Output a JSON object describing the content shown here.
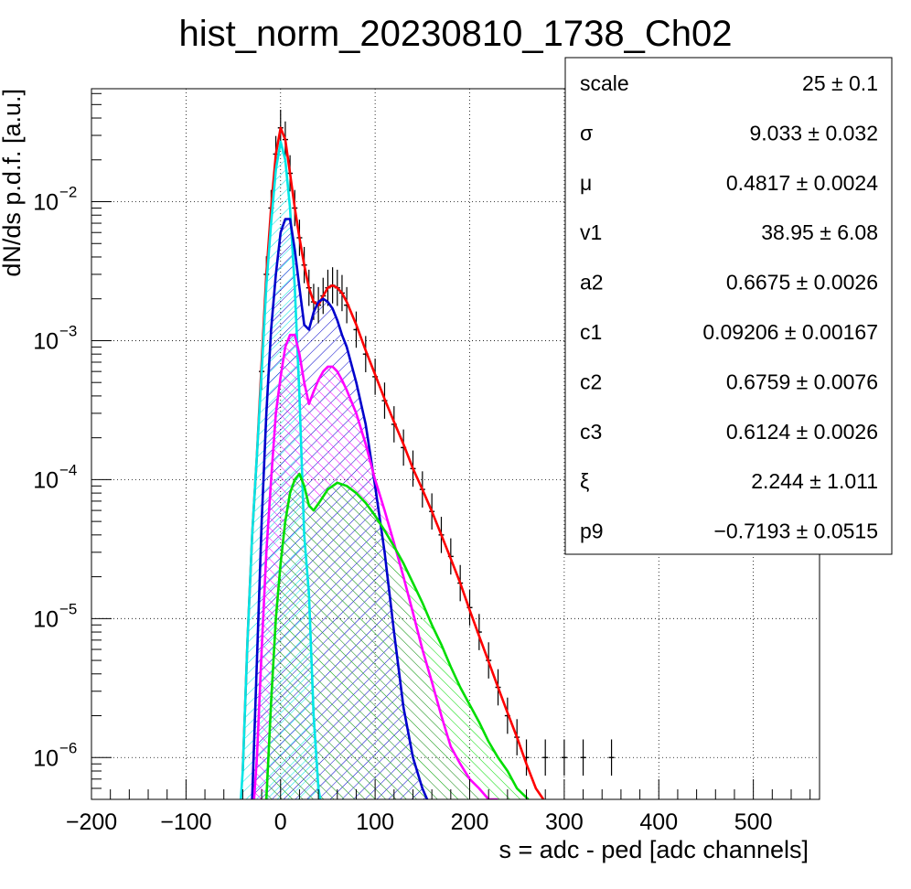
{
  "chart_data": {
    "type": "line",
    "title": "hist_norm_20230810_1738_Ch02",
    "xlabel": "s = adc - ped [adc channels]",
    "ylabel": "dN/ds p.d.f. [a.u.]",
    "xlim": [
      -200,
      570
    ],
    "ylim": [
      5e-07,
      0.065
    ],
    "y_scale": "log",
    "grid": true,
    "x_ticks": [
      {
        "value": -200,
        "label": "−200"
      },
      {
        "value": -100,
        "label": "−100"
      },
      {
        "value": 0,
        "label": "0"
      },
      {
        "value": 100,
        "label": "100"
      },
      {
        "value": 200,
        "label": "200"
      },
      {
        "value": 300,
        "label": "300"
      },
      {
        "value": 400,
        "label": "400"
      },
      {
        "value": 500,
        "label": "500"
      }
    ],
    "y_ticks": [
      {
        "value": 0.01,
        "base": "10",
        "exp": "−2"
      },
      {
        "value": 0.001,
        "base": "10",
        "exp": "−3"
      },
      {
        "value": 0.0001,
        "base": "10",
        "exp": "−4"
      },
      {
        "value": 1e-05,
        "base": "10",
        "exp": "−5"
      },
      {
        "value": 1e-06,
        "base": "10",
        "exp": "−6"
      }
    ],
    "data_histogram": {
      "color": "#000000",
      "x": [
        -20,
        -15,
        -10,
        -5,
        0,
        5,
        10,
        15,
        20,
        25,
        30,
        35,
        40,
        45,
        50,
        55,
        60,
        65,
        70,
        80,
        90,
        100,
        110,
        120,
        130,
        140,
        150,
        160,
        170,
        180,
        190,
        200,
        210,
        220,
        230,
        240,
        250,
        260,
        280,
        300,
        320,
        350
      ],
      "y": [
        0.0006,
        0.003,
        0.009,
        0.022,
        0.034,
        0.028,
        0.016,
        0.009,
        0.0055,
        0.0035,
        0.0024,
        0.0019,
        0.0018,
        0.0021,
        0.0024,
        0.0025,
        0.0024,
        0.0022,
        0.0018,
        0.0012,
        0.0008,
        0.00055,
        0.00037,
        0.00025,
        0.00017,
        0.00012,
        8.5e-05,
        5.9e-05,
        4e-05,
        2.8e-05,
        1.8e-05,
        1.2e-05,
        8e-06,
        5e-06,
        3.2e-06,
        2e-06,
        1.4e-06,
        1e-06,
        1e-06,
        1e-06,
        1e-06,
        1e-06
      ]
    },
    "series": [
      {
        "color": "#ff0000",
        "fill": false,
        "x": [
          -40,
          -35,
          -30,
          -25,
          -20,
          -15,
          -10,
          -5,
          0,
          5,
          10,
          15,
          20,
          25,
          30,
          35,
          40,
          45,
          50,
          55,
          60,
          65,
          70,
          80,
          90,
          100,
          110,
          120,
          130,
          140,
          150,
          160,
          170,
          180,
          190,
          200,
          210,
          220,
          230,
          240,
          250,
          260,
          270,
          278
        ],
        "y": [
          8e-07,
          7e-06,
          4e-05,
          0.00015,
          0.0007,
          0.003,
          0.009,
          0.022,
          0.034,
          0.028,
          0.016,
          0.009,
          0.0055,
          0.0035,
          0.0024,
          0.0019,
          0.0018,
          0.0021,
          0.0024,
          0.0025,
          0.0024,
          0.0022,
          0.0019,
          0.0013,
          0.00085,
          0.00057,
          0.00038,
          0.00026,
          0.00018,
          0.00012,
          8.5e-05,
          5.9e-05,
          4e-05,
          2.7e-05,
          1.8e-05,
          1.15e-05,
          7.5e-06,
          4.9e-06,
          3.2e-06,
          2.1e-06,
          1.4e-06,
          9e-07,
          6e-07,
          5e-07
        ]
      },
      {
        "color": "#00e6e6",
        "fill": true,
        "x": [
          -42,
          -40,
          -35,
          -30,
          -25,
          -20,
          -15,
          -10,
          -5,
          0,
          5,
          10,
          15,
          20,
          25,
          30,
          35,
          40,
          42
        ],
        "y": [
          5e-07,
          8e-07,
          7e-06,
          4e-05,
          0.00015,
          0.0006,
          0.0025,
          0.007,
          0.017,
          0.027,
          0.02,
          0.009,
          0.0024,
          0.0004,
          4e-05,
          1.5e-05,
          2e-06,
          6e-07,
          5e-07
        ]
      },
      {
        "color": "#0000cc",
        "fill": true,
        "x": [
          -30,
          -25,
          -20,
          -15,
          -10,
          -5,
          0,
          5,
          10,
          15,
          20,
          25,
          30,
          35,
          40,
          45,
          50,
          55,
          60,
          65,
          70,
          80,
          90,
          100,
          110,
          120,
          130,
          140,
          150,
          155
        ],
        "y": [
          5e-07,
          5e-06,
          5e-05,
          0.0003,
          0.0012,
          0.003,
          0.006,
          0.0075,
          0.0075,
          0.0045,
          0.0024,
          0.0013,
          0.0012,
          0.0016,
          0.0019,
          0.002,
          0.0019,
          0.0017,
          0.0014,
          0.0011,
          0.0009,
          0.0005,
          0.00025,
          9e-05,
          3e-05,
          8e-06,
          2.3e-06,
          1e-06,
          6e-07,
          5e-07
        ]
      },
      {
        "color": "#ff00ff",
        "fill": true,
        "x": [
          -28,
          -25,
          -20,
          -15,
          -10,
          -5,
          0,
          5,
          10,
          15,
          20,
          25,
          30,
          35,
          40,
          45,
          50,
          55,
          60,
          65,
          70,
          80,
          90,
          100,
          110,
          120,
          130,
          140,
          150,
          160,
          170,
          180,
          190,
          200,
          210,
          220,
          230
        ],
        "y": [
          5e-07,
          1e-06,
          6e-06,
          3e-05,
          0.0001,
          0.0003,
          0.00055,
          0.0009,
          0.0011,
          0.0011,
          0.0008,
          0.0005,
          0.00035,
          0.00043,
          0.00052,
          0.0006,
          0.00065,
          0.00065,
          0.0006,
          0.00052,
          0.00044,
          0.0003,
          0.00018,
          0.0001,
          6e-05,
          3.5e-05,
          2e-05,
          1.1e-05,
          6e-06,
          3.5e-06,
          2e-06,
          1.2e-06,
          9e-07,
          7e-07,
          6e-07,
          5e-07,
          5e-07
        ]
      },
      {
        "color": "#00dd00",
        "fill": true,
        "x": [
          -15,
          -10,
          -5,
          0,
          5,
          10,
          15,
          20,
          25,
          30,
          35,
          40,
          50,
          60,
          70,
          80,
          90,
          100,
          110,
          120,
          130,
          140,
          150,
          160,
          170,
          180,
          190,
          200,
          210,
          220,
          230,
          240,
          250,
          262
        ],
        "y": [
          5e-07,
          2.5e-06,
          1e-05,
          2.5e-05,
          5e-05,
          8e-05,
          0.0001,
          0.00011,
          9e-05,
          6.5e-05,
          6e-05,
          6.7e-05,
          8.5e-05,
          9.5e-05,
          9e-05,
          8e-05,
          6.8e-05,
          5.5e-05,
          4.3e-05,
          3.3e-05,
          2.5e-05,
          1.8e-05,
          1.3e-05,
          9e-06,
          6.5e-06,
          4.5e-06,
          3.2e-06,
          2.4e-06,
          1.8e-06,
          1.3e-06,
          1e-06,
          8e-07,
          6e-07,
          5e-07
        ]
      }
    ]
  },
  "stats_box": [
    {
      "name": "scale",
      "value": "25 ± 0.1"
    },
    {
      "name": "σ",
      "value": "9.033 ± 0.032"
    },
    {
      "name": "μ",
      "value": "0.4817 ± 0.0024"
    },
    {
      "name": "v1",
      "value": "38.95 ± 6.08"
    },
    {
      "name": "a2",
      "value": "0.6675 ± 0.0026"
    },
    {
      "name": "c1",
      "value": "0.09206 ± 0.00167"
    },
    {
      "name": "c2",
      "value": "0.6759 ± 0.0076"
    },
    {
      "name": "c3",
      "value": "0.6124 ± 0.0026"
    },
    {
      "name": "ξ",
      "value": "2.244 ± 1.011"
    },
    {
      "name": "p9",
      "value": "−0.7193 ± 0.0515"
    }
  ]
}
